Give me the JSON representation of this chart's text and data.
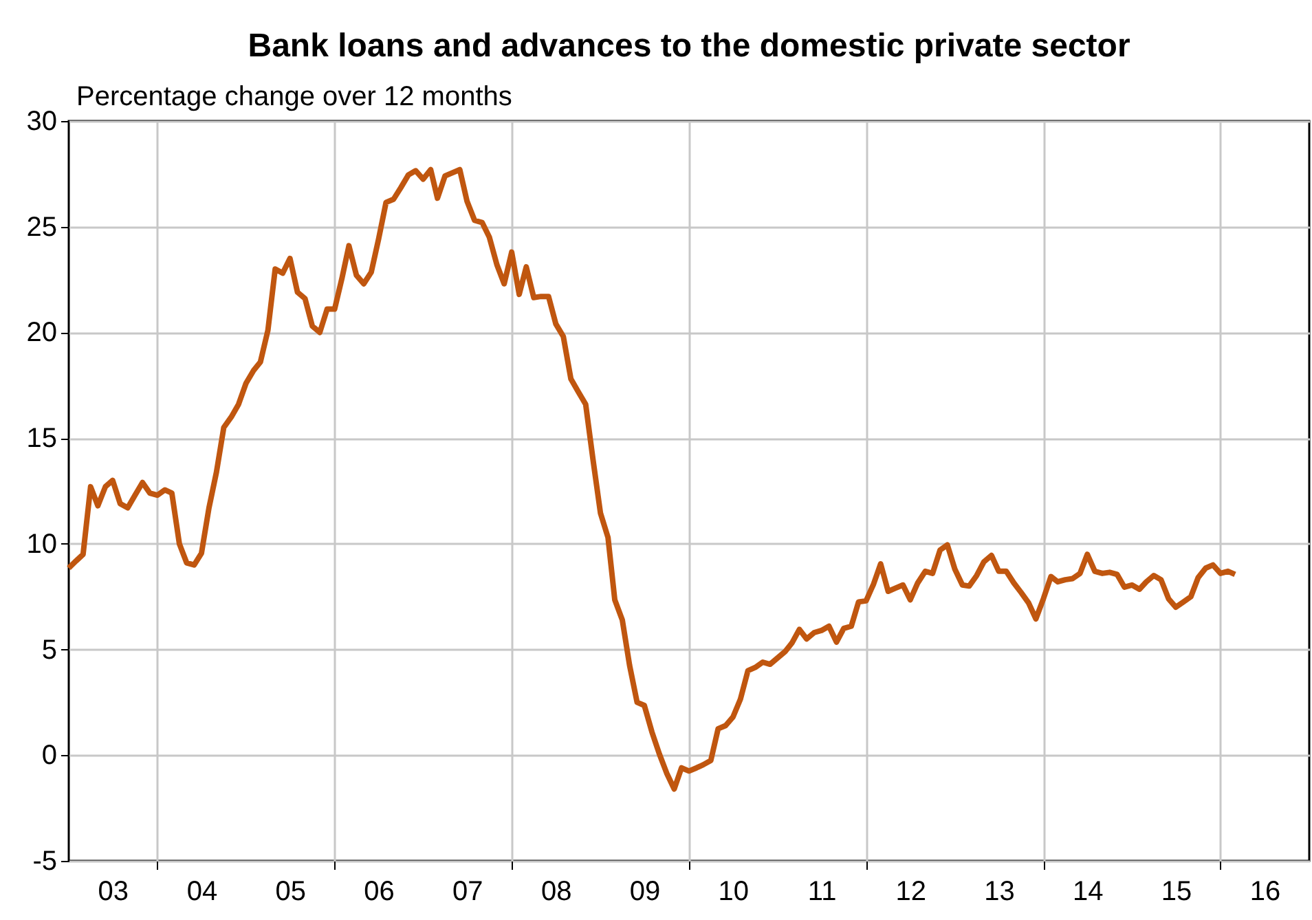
{
  "chart_data": {
    "type": "line",
    "title": "Bank loans and advances to the domestic private sector",
    "ylabel": "Percentage change over 12 months",
    "x": [
      "2003-01",
      "2003-02",
      "2003-03",
      "2003-04",
      "2003-05",
      "2003-06",
      "2003-07",
      "2003-08",
      "2003-09",
      "2003-10",
      "2003-11",
      "2003-12",
      "2004-01",
      "2004-02",
      "2004-03",
      "2004-04",
      "2004-05",
      "2004-06",
      "2004-07",
      "2004-08",
      "2004-09",
      "2004-10",
      "2004-11",
      "2004-12",
      "2005-01",
      "2005-02",
      "2005-03",
      "2005-04",
      "2005-05",
      "2005-06",
      "2005-07",
      "2005-08",
      "2005-09",
      "2005-10",
      "2005-11",
      "2005-12",
      "2006-01",
      "2006-02",
      "2006-03",
      "2006-04",
      "2006-05",
      "2006-06",
      "2006-07",
      "2006-08",
      "2006-09",
      "2006-10",
      "2006-11",
      "2006-12",
      "2007-01",
      "2007-02",
      "2007-03",
      "2007-04",
      "2007-05",
      "2007-06",
      "2007-07",
      "2007-08",
      "2007-09",
      "2007-10",
      "2007-11",
      "2007-12",
      "2008-01",
      "2008-02",
      "2008-03",
      "2008-04",
      "2008-05",
      "2008-06",
      "2008-07",
      "2008-08",
      "2008-09",
      "2008-10",
      "2008-11",
      "2008-12",
      "2009-01",
      "2009-02",
      "2009-03",
      "2009-04",
      "2009-05",
      "2009-06",
      "2009-07",
      "2009-08",
      "2009-09",
      "2009-10",
      "2009-11",
      "2009-12",
      "2010-01",
      "2010-02",
      "2010-03",
      "2010-04",
      "2010-05",
      "2010-06",
      "2010-07",
      "2010-08",
      "2010-09",
      "2010-10",
      "2010-11",
      "2010-12",
      "2011-01",
      "2011-02",
      "2011-03",
      "2011-04",
      "2011-05",
      "2011-06",
      "2011-07",
      "2011-08",
      "2011-09",
      "2011-10",
      "2011-11",
      "2011-12",
      "2012-01",
      "2012-02",
      "2012-03",
      "2012-04",
      "2012-05",
      "2012-06",
      "2012-07",
      "2012-08",
      "2012-09",
      "2012-10",
      "2012-11",
      "2012-12",
      "2013-01",
      "2013-02",
      "2013-03",
      "2013-04",
      "2013-05",
      "2013-06",
      "2013-07",
      "2013-08",
      "2013-09",
      "2013-10",
      "2013-11",
      "2013-12",
      "2014-01",
      "2014-02",
      "2014-03",
      "2014-04",
      "2014-05",
      "2014-06",
      "2014-07",
      "2014-08",
      "2014-09",
      "2014-10",
      "2014-11",
      "2014-12",
      "2015-01",
      "2015-02",
      "2015-03",
      "2015-04",
      "2015-05",
      "2015-06",
      "2015-07",
      "2015-08",
      "2015-09",
      "2015-10",
      "2015-11",
      "2015-12",
      "2016-01",
      "2016-02",
      "2016-03"
    ],
    "series": [
      {
        "color": "#c0560f",
        "values": [
          8.85,
          9.2,
          9.5,
          12.7,
          11.8,
          12.7,
          13.0,
          11.9,
          11.7,
          12.3,
          12.9,
          12.4,
          12.3,
          12.55,
          12.4,
          10.0,
          9.1,
          9.0,
          9.55,
          11.7,
          13.4,
          15.5,
          16.0,
          16.6,
          17.6,
          18.2,
          18.6,
          20.1,
          23.0,
          22.8,
          23.5,
          21.9,
          21.6,
          20.3,
          20.0,
          21.1,
          21.1,
          22.6,
          24.1,
          22.7,
          22.3,
          22.85,
          24.4,
          26.15,
          26.3,
          26.85,
          27.45,
          27.65,
          27.25,
          27.7,
          26.35,
          27.4,
          27.55,
          27.7,
          26.2,
          25.3,
          25.2,
          24.5,
          23.2,
          22.3,
          23.8,
          21.8,
          23.1,
          21.65,
          21.7,
          21.7,
          20.4,
          19.8,
          17.8,
          17.2,
          16.6,
          14.0,
          11.45,
          10.3,
          7.35,
          6.4,
          4.25,
          2.5,
          2.35,
          1.1,
          0.05,
          -0.85,
          -1.6,
          -0.6,
          -0.75,
          -0.6,
          -0.45,
          -0.25,
          1.25,
          1.4,
          1.8,
          2.65,
          4.0,
          4.15,
          4.4,
          4.3,
          4.6,
          4.9,
          5.3,
          5.95,
          5.5,
          5.8,
          5.9,
          6.1,
          5.35,
          6.0,
          6.1,
          7.25,
          7.3,
          8.1,
          9.05,
          7.75,
          7.9,
          8.05,
          7.35,
          8.15,
          8.7,
          8.6,
          9.7,
          9.95,
          8.8,
          8.05,
          8.0,
          8.5,
          9.15,
          9.45,
          8.7,
          8.7,
          8.15,
          7.7,
          7.2,
          6.45,
          7.4,
          8.45,
          8.2,
          8.3,
          8.35,
          8.6,
          9.5,
          8.7,
          8.6,
          8.65,
          8.55,
          7.95,
          8.05,
          7.85,
          8.2,
          8.5,
          8.3,
          7.4,
          7.0,
          7.25,
          7.5,
          8.4,
          8.85,
          9.0,
          8.6,
          8.7,
          8.55
        ]
      }
    ],
    "xlim": [
      "2003-01",
      "2017-01"
    ],
    "xticks": [
      {
        "value": "2003-07",
        "label": "03"
      },
      {
        "value": "2004-01",
        "label": null
      },
      {
        "value": "2004-07",
        "label": "04"
      },
      {
        "value": "2005-07",
        "label": "05"
      },
      {
        "value": "2006-01",
        "label": null
      },
      {
        "value": "2006-07",
        "label": "06"
      },
      {
        "value": "2007-07",
        "label": "07"
      },
      {
        "value": "2008-01",
        "label": null
      },
      {
        "value": "2008-07",
        "label": "08"
      },
      {
        "value": "2009-07",
        "label": "09"
      },
      {
        "value": "2010-01",
        "label": null
      },
      {
        "value": "2010-07",
        "label": "10"
      },
      {
        "value": "2011-07",
        "label": "11"
      },
      {
        "value": "2012-01",
        "label": null
      },
      {
        "value": "2012-07",
        "label": "12"
      },
      {
        "value": "2013-07",
        "label": "13"
      },
      {
        "value": "2014-01",
        "label": null
      },
      {
        "value": "2014-07",
        "label": "14"
      },
      {
        "value": "2015-07",
        "label": "15"
      },
      {
        "value": "2016-01",
        "label": null
      },
      {
        "value": "2016-07",
        "label": "16"
      }
    ],
    "ylim": [
      -5,
      30
    ],
    "yticks": [
      -5,
      0,
      5,
      10,
      15,
      20,
      25,
      30
    ],
    "grid": true
  }
}
